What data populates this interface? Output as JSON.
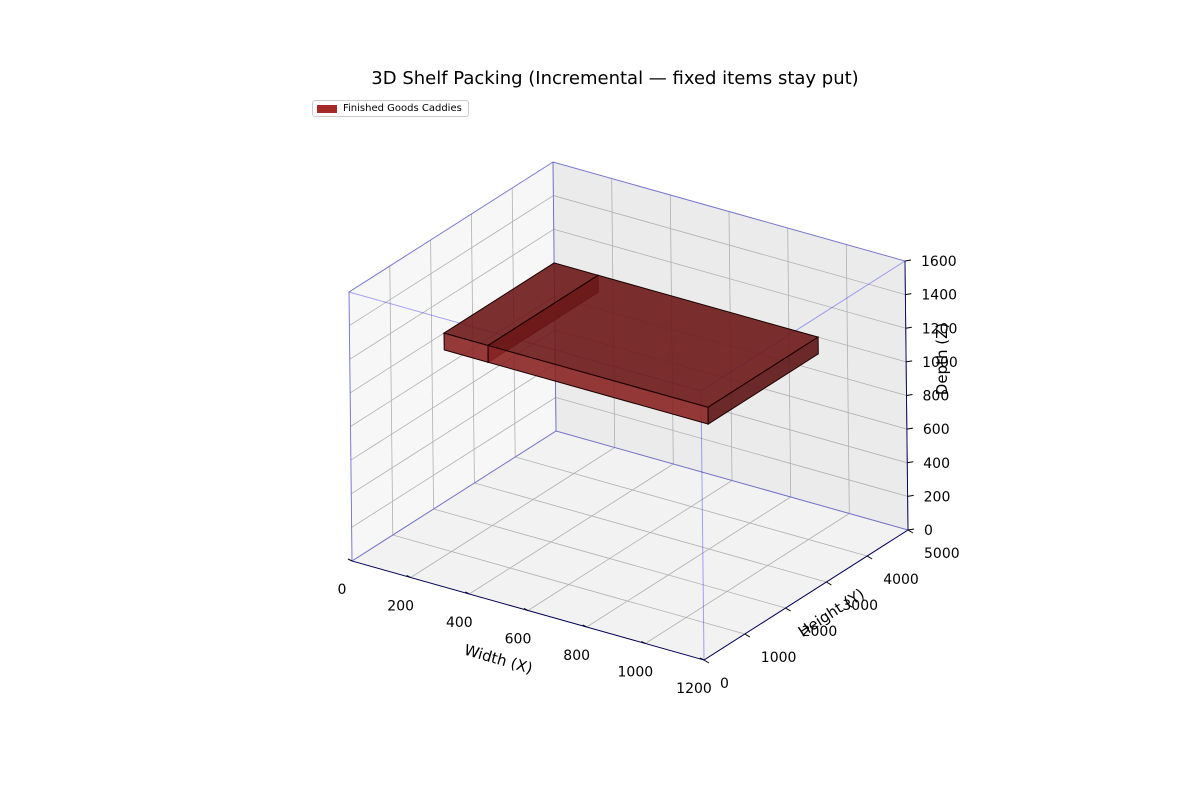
{
  "chart_data": {
    "type": "3d-box",
    "title": "3D Shelf Packing (Incremental — fixed items stay put)",
    "xlabel": "Width (X)",
    "ylabel": "Height (Y)",
    "zlabel": "Depth (Z)",
    "xlim": [
      0,
      1200
    ],
    "ylim": [
      0,
      5000
    ],
    "zlim": [
      0,
      1600
    ],
    "xticks": [
      "0",
      "200",
      "400",
      "600",
      "800",
      "1000",
      "1200"
    ],
    "yticks": [
      "0",
      "1000",
      "2000",
      "3000",
      "4000",
      "5000"
    ],
    "zticks": [
      "0",
      "200",
      "400",
      "600",
      "800",
      "1000",
      "1200",
      "1400",
      "1600"
    ],
    "grid": true,
    "legend_position": "top-left",
    "legend": [
      {
        "name": "Finished Goods Caddies",
        "color": "#a52a2a"
      }
    ],
    "shelf": {
      "color": "#0000ff"
    }
  }
}
